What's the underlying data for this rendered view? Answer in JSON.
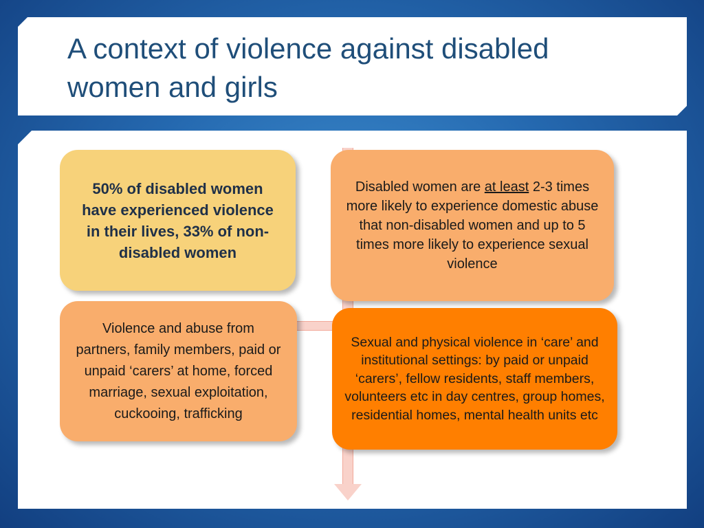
{
  "slide": {
    "title": "A context of violence against disabled women and girls"
  },
  "cards": {
    "stat": {
      "text": "50% of disabled women have experienced violence in their lives, 33% of non-disabled women"
    },
    "likely": {
      "before": "Disabled women are ",
      "emphasis": "at least",
      "after": " 2-3 times more likely to experience domestic abuse that non-disabled women and up to 5 times more likely to experience sexual violence"
    },
    "violence": {
      "text": "Violence and abuse from partners, family members, paid or unpaid ‘carers’ at home, forced marriage, sexual exploitation, cuckooing, trafficking"
    },
    "care": {
      "text": "Sexual and physical violence in ‘care’ and institutional settings: by paid or unpaid ‘carers’, fellow residents, staff members, volunteers etc in day centres, group homes, residential homes, mental health units etc"
    }
  },
  "colors": {
    "title": "#1f4e79",
    "stat_card": "#f7d27a",
    "light_orange_card": "#f9ad6c",
    "dark_orange_card": "#ff7f00",
    "timeline": "#f9d2ca"
  }
}
